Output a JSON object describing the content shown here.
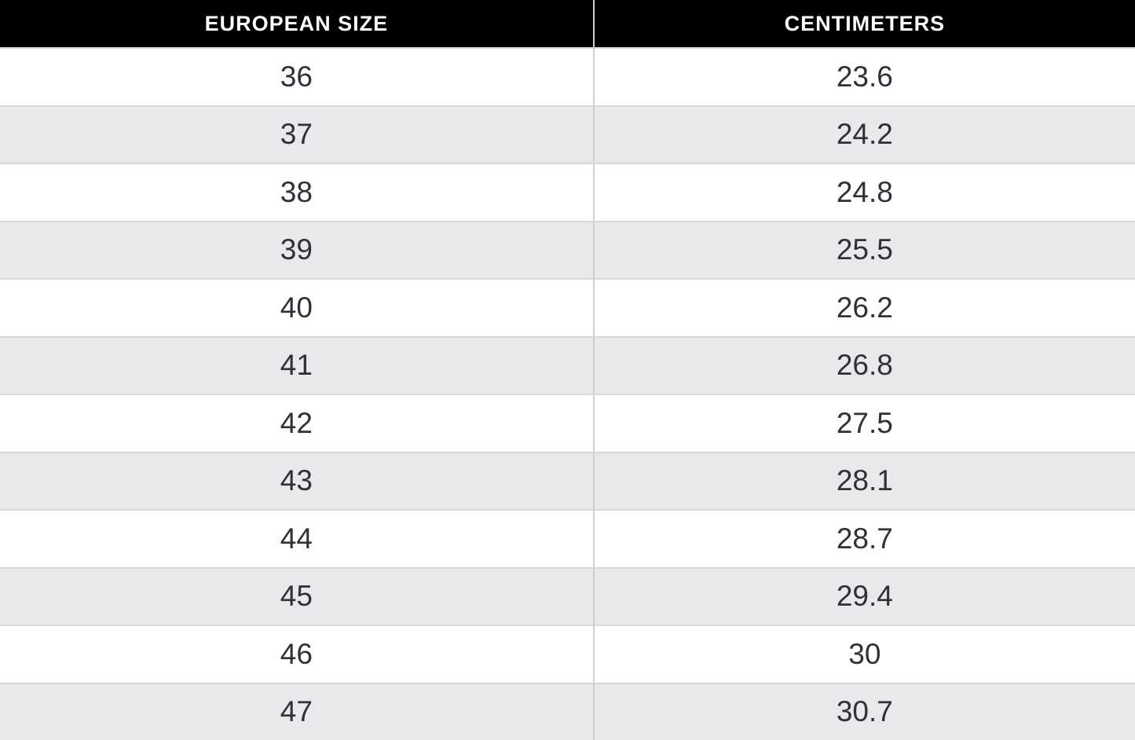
{
  "table": {
    "columns": [
      {
        "label": "EUROPEAN SIZE"
      },
      {
        "label": "CENTIMETERS"
      }
    ],
    "rows": [
      [
        "36",
        "23.6"
      ],
      [
        "37",
        "24.2"
      ],
      [
        "38",
        "24.8"
      ],
      [
        "39",
        "25.5"
      ],
      [
        "40",
        "26.2"
      ],
      [
        "41",
        "26.8"
      ],
      [
        "42",
        "27.5"
      ],
      [
        "43",
        "28.1"
      ],
      [
        "44",
        "28.7"
      ],
      [
        "45",
        "29.4"
      ],
      [
        "46",
        "30"
      ],
      [
        "47",
        "30.7"
      ]
    ]
  },
  "colors": {
    "header_bg": "#000000",
    "header_text": "#ffffff",
    "row_bg_white": "#ffffff",
    "row_bg_gray": "#e9e8ea",
    "row_border": "#d8d8da",
    "column_divider": "#cfcfd2",
    "cell_text": "#303036"
  },
  "chart_data": {
    "type": "table",
    "title": "",
    "columns": [
      "EUROPEAN SIZE",
      "CENTIMETERS"
    ],
    "rows": [
      [
        36,
        23.6
      ],
      [
        37,
        24.2
      ],
      [
        38,
        24.8
      ],
      [
        39,
        25.5
      ],
      [
        40,
        26.2
      ],
      [
        41,
        26.8
      ],
      [
        42,
        27.5
      ],
      [
        43,
        28.1
      ],
      [
        44,
        28.7
      ],
      [
        45,
        29.4
      ],
      [
        46,
        30
      ],
      [
        47,
        30.7
      ]
    ]
  }
}
